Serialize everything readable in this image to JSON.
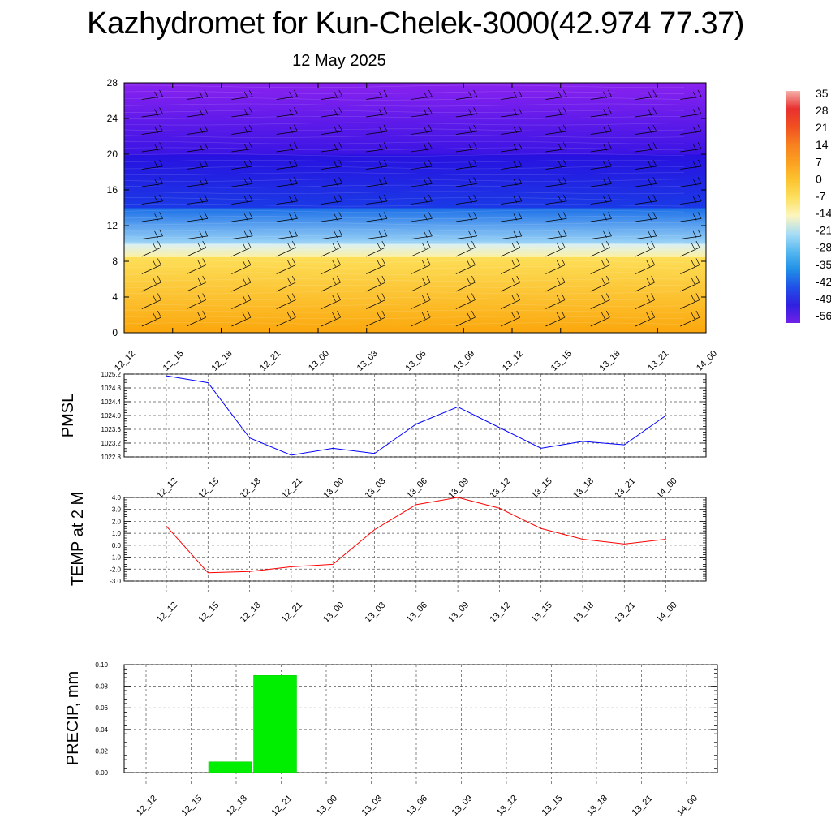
{
  "header": {
    "title": "Kazhydromet for Kun-Chelek-3000(42.974 77.37)",
    "subtitle": "12 May 2025"
  },
  "time_labels": [
    "12_12",
    "12_15",
    "12_18",
    "12_21",
    "13_00",
    "13_03",
    "13_06",
    "13_09",
    "13_12",
    "13_15",
    "13_18",
    "13_21",
    "14_00"
  ],
  "colors": {
    "pmsl_line": "#0000ff",
    "temp_line": "#ff0000",
    "precip_bar": "#00ee00",
    "grid": "#555555"
  },
  "chart_data": [
    {
      "type": "heatmap",
      "name": "temperature-profile",
      "ylim": [
        0,
        28
      ],
      "yticks": [
        0,
        4,
        8,
        12,
        16,
        20,
        24,
        28
      ],
      "colorbar_labels": [
        "35",
        "28",
        "21",
        "14",
        "7",
        "0",
        "-7",
        "-14",
        "-21",
        "-28",
        "-35",
        "-42",
        "-49",
        "-56"
      ],
      "colorbar_colors": [
        "#f5b0a8",
        "#e83030",
        "#f05020",
        "#f88020",
        "#fba020",
        "#fcc430",
        "#fce060",
        "#fdf5c0",
        "#a8ddf5",
        "#55b8f0",
        "#2090e8",
        "#2050e8",
        "#3020e0",
        "#7020e8"
      ],
      "layers": [
        {
          "bottom": 0,
          "top": 8.5,
          "color_bottom": "#fba70c",
          "color_top": "#fddf58"
        },
        {
          "bottom": 8.5,
          "top": 10,
          "color_bottom": "#fdf0a0",
          "color_top": "#d8f0f8"
        },
        {
          "bottom": 10,
          "top": 14,
          "color_bottom": "#9ed6f6",
          "color_top": "#1a6ee8"
        },
        {
          "bottom": 14,
          "top": 20,
          "color_bottom": "#1a3ae6",
          "color_top": "#2810e0"
        },
        {
          "bottom": 20,
          "top": 28,
          "color_bottom": "#3a14e4",
          "color_top": "#8a22f0"
        }
      ]
    },
    {
      "type": "line",
      "name": "pmsl",
      "ylabel": "PMSL",
      "x": [
        "12_12",
        "12_15",
        "12_18",
        "12_21",
        "13_00",
        "13_03",
        "13_06",
        "13_09",
        "13_12",
        "13_15",
        "13_18",
        "13_21",
        "14_00"
      ],
      "values": [
        1025.15,
        1024.95,
        1023.35,
        1022.85,
        1023.05,
        1022.9,
        1023.75,
        1024.25,
        1023.65,
        1023.05,
        1023.25,
        1023.15,
        1024.0
      ],
      "ylim": [
        1022.8,
        1025.2
      ],
      "yticks": [
        "1025.2",
        "1024.8",
        "1024.4",
        "1024.0",
        "1023.6",
        "1023.2",
        "1022.8"
      ]
    },
    {
      "type": "line",
      "name": "temp-2m",
      "ylabel": "TEMP at 2 M",
      "x": [
        "12_12",
        "12_15",
        "12_18",
        "12_21",
        "13_00",
        "13_03",
        "13_06",
        "13_09",
        "13_12",
        "13_15",
        "13_18",
        "13_21",
        "14_00"
      ],
      "values": [
        1.6,
        -2.3,
        -2.2,
        -1.8,
        -1.6,
        1.3,
        3.4,
        4.0,
        3.1,
        1.4,
        0.5,
        0.1,
        0.5
      ],
      "ylim": [
        -3.0,
        4.0
      ],
      "yticks": [
        "4.0",
        "3.0",
        "2.0",
        "1.0",
        "0.0",
        "-1.0",
        "-2.0",
        "-3.0"
      ]
    },
    {
      "type": "bar",
      "name": "precip",
      "ylabel": "PRECIP, mm",
      "categories": [
        "12_12",
        "12_15",
        "12_18",
        "12_21",
        "13_00",
        "13_03",
        "13_06",
        "13_09",
        "13_12",
        "13_15",
        "13_18",
        "13_21",
        "14_00"
      ],
      "values": [
        0,
        0,
        0.01,
        0.09,
        0,
        0,
        0,
        0,
        0,
        0,
        0,
        0,
        0
      ],
      "ylim": [
        0,
        0.1
      ],
      "yticks": [
        "0.10",
        "0.08",
        "0.06",
        "0.04",
        "0.02",
        "0.00"
      ]
    }
  ]
}
